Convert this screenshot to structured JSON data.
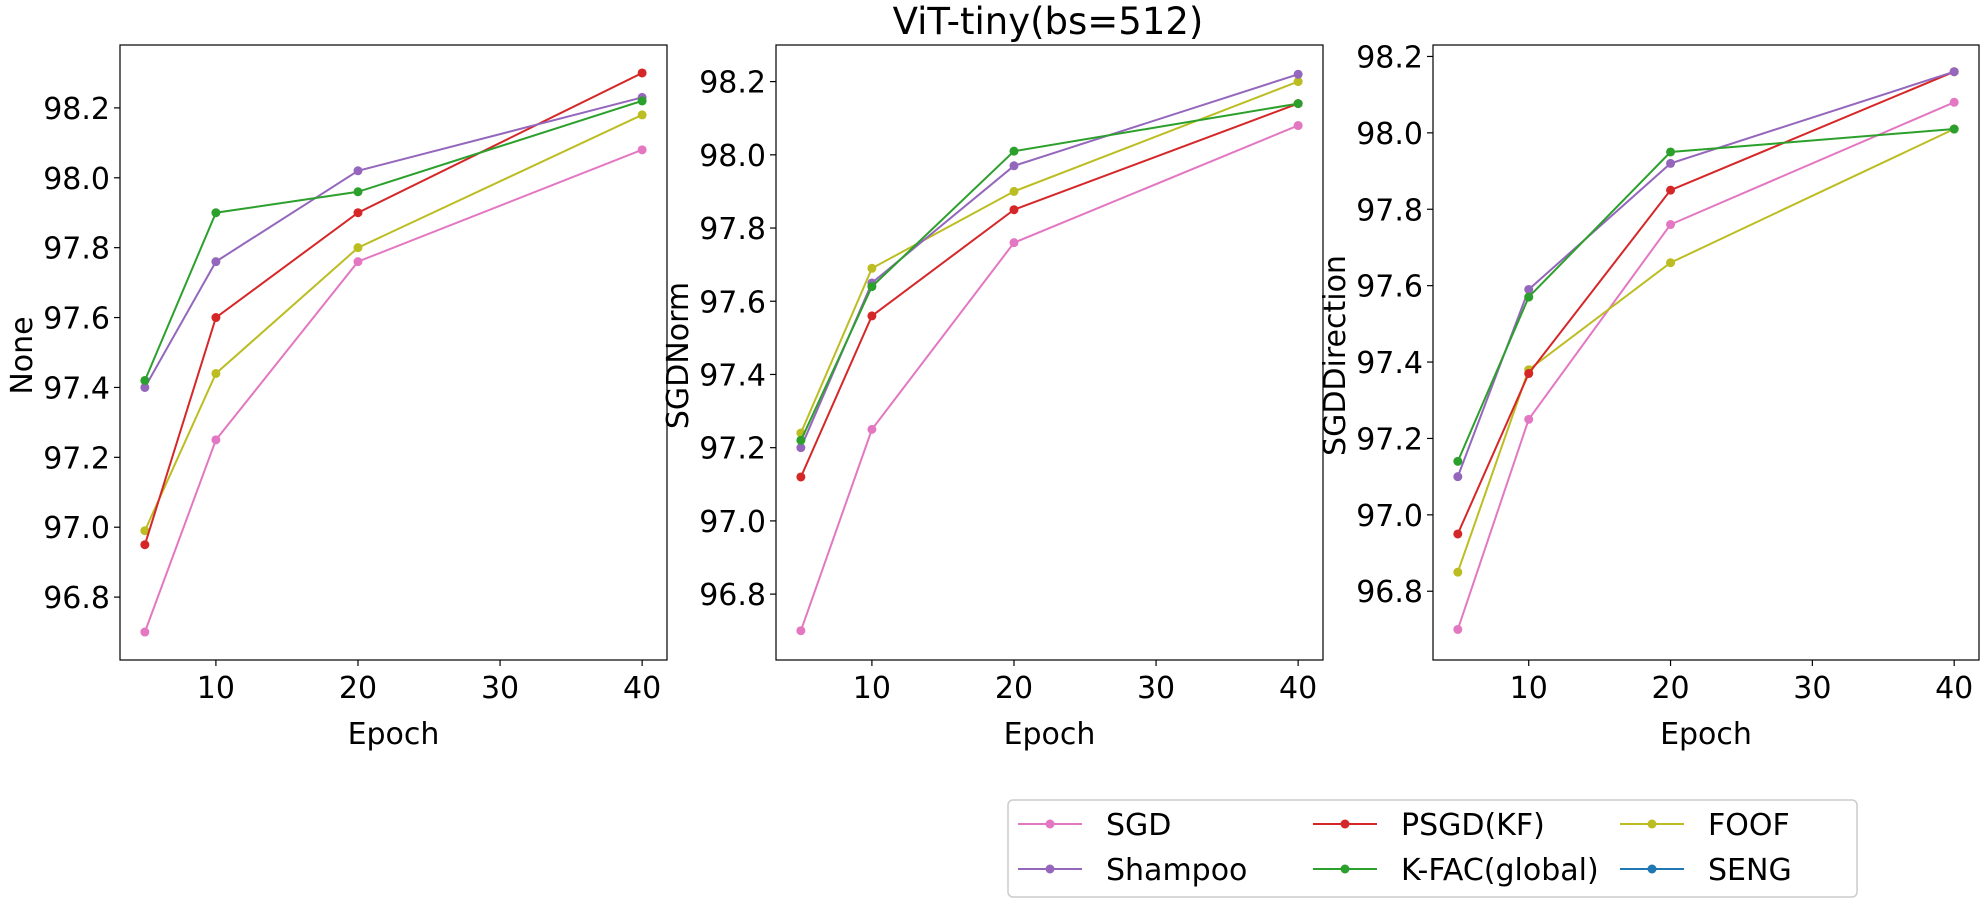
{
  "title": "ViT-tiny(bs=512)",
  "legend": {
    "entries": [
      {
        "name": "SGD",
        "color": "#e377c2"
      },
      {
        "name": "Shampoo",
        "color": "#9467bd"
      },
      {
        "name": "PSGD(KF)",
        "color": "#d62728"
      },
      {
        "name": "K-FAC(global)",
        "color": "#2ca02c"
      },
      {
        "name": "FOOF",
        "color": "#bcbd22"
      },
      {
        "name": "SENG",
        "color": "#1f77b4"
      }
    ],
    "placement": "bottom-right, outside plots"
  },
  "chart_data": [
    {
      "type": "line",
      "xlabel": "Epoch",
      "ylabel": "None",
      "x": [
        5,
        10,
        20,
        40
      ],
      "xticks": [
        10,
        20,
        30,
        40
      ],
      "yticks": [
        96.8,
        97.0,
        97.2,
        97.4,
        97.6,
        97.8,
        98.0,
        98.2
      ],
      "xlim": [
        3.25,
        41.75
      ],
      "ylim": [
        96.62,
        98.38
      ],
      "grid": false,
      "series": [
        {
          "name": "SGD",
          "color": "#e377c2",
          "values": [
            96.7,
            97.25,
            97.76,
            98.08
          ]
        },
        {
          "name": "FOOF",
          "color": "#bcbd22",
          "values": [
            96.99,
            97.44,
            97.8,
            98.18
          ]
        },
        {
          "name": "PSGD(KF)",
          "color": "#d62728",
          "values": [
            96.95,
            97.6,
            97.9,
            98.3
          ]
        },
        {
          "name": "Shampoo",
          "color": "#9467bd",
          "values": [
            97.4,
            97.76,
            98.02,
            98.23
          ]
        },
        {
          "name": "K-FAC(global)",
          "color": "#2ca02c",
          "values": [
            97.42,
            97.9,
            97.96,
            98.22
          ]
        }
      ]
    },
    {
      "type": "line",
      "xlabel": "Epoch",
      "ylabel": "SGDNorm",
      "x": [
        5,
        10,
        20,
        40
      ],
      "xticks": [
        10,
        20,
        30,
        40
      ],
      "yticks": [
        96.8,
        97.0,
        97.2,
        97.4,
        97.6,
        97.8,
        98.0,
        98.2
      ],
      "xlim": [
        3.25,
        41.75
      ],
      "ylim": [
        96.62,
        98.3
      ],
      "grid": false,
      "series": [
        {
          "name": "SGD",
          "color": "#e377c2",
          "values": [
            96.7,
            97.25,
            97.76,
            98.08
          ]
        },
        {
          "name": "PSGD(KF)",
          "color": "#d62728",
          "values": [
            97.12,
            97.56,
            97.85,
            98.14
          ]
        },
        {
          "name": "FOOF",
          "color": "#bcbd22",
          "values": [
            97.24,
            97.69,
            97.9,
            98.2
          ]
        },
        {
          "name": "Shampoo",
          "color": "#9467bd",
          "values": [
            97.2,
            97.65,
            97.97,
            98.22
          ]
        },
        {
          "name": "K-FAC(global)",
          "color": "#2ca02c",
          "values": [
            97.22,
            97.64,
            98.01,
            98.14
          ]
        }
      ]
    },
    {
      "type": "line",
      "xlabel": "Epoch",
      "ylabel": "SGDDirection",
      "x": [
        5,
        10,
        20,
        40
      ],
      "xticks": [
        10,
        20,
        30,
        40
      ],
      "yticks": [
        96.8,
        97.0,
        97.2,
        97.4,
        97.6,
        97.8,
        98.0,
        98.2
      ],
      "xlim": [
        3.25,
        41.75
      ],
      "ylim": [
        96.62,
        98.23
      ],
      "grid": false,
      "series": [
        {
          "name": "SGD",
          "color": "#e377c2",
          "values": [
            96.7,
            97.25,
            97.76,
            98.08
          ]
        },
        {
          "name": "FOOF",
          "color": "#bcbd22",
          "values": [
            96.85,
            97.38,
            97.66,
            98.01
          ]
        },
        {
          "name": "PSGD(KF)",
          "color": "#d62728",
          "values": [
            96.95,
            97.37,
            97.85,
            98.16
          ]
        },
        {
          "name": "Shampoo",
          "color": "#9467bd",
          "values": [
            97.1,
            97.59,
            97.92,
            98.16
          ]
        },
        {
          "name": "K-FAC(global)",
          "color": "#2ca02c",
          "values": [
            97.14,
            97.57,
            97.95,
            98.01
          ]
        }
      ]
    }
  ]
}
